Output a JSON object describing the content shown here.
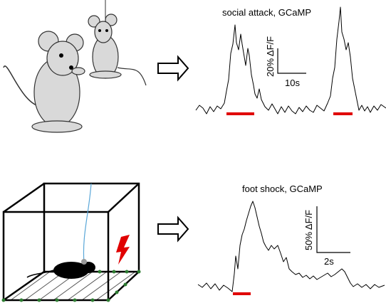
{
  "top_panel": {
    "title": "social attack, GCaMP",
    "scale_y": "20% ΔF/F",
    "scale_x": "10s"
  },
  "bottom_panel": {
    "title": "foot shock, GCaMP",
    "scale_y": "50% ΔF/F",
    "scale_x": "2s"
  }
}
